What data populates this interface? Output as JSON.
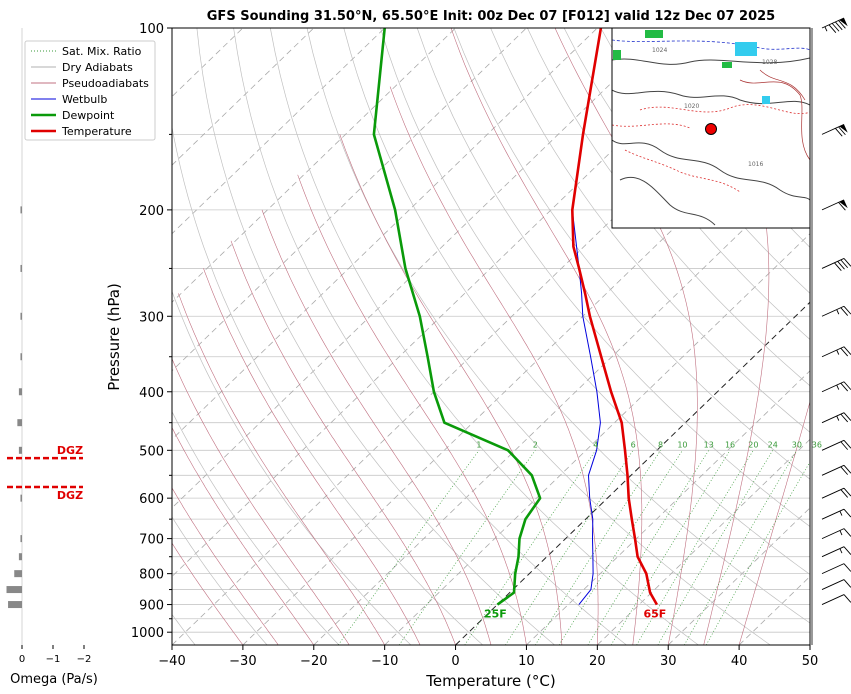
{
  "title": "GFS Sounding 31.50°N, 65.50°E Init: 00z Dec 07 [F012] valid 12z Dec 07 2025",
  "colors": {
    "temperature": "#e00000",
    "dewpoint": "#0a9a0a",
    "wetbulb": "#0000dd",
    "dry_adiabat": "#c0c0c0",
    "pseudoadiabat": "#c07080",
    "mixing_ratio": "#3a9a3a"
  },
  "chart_data": {
    "type": "line",
    "subtype": "skew-T log-P",
    "title": "GFS Sounding 31.50°N, 65.50°E Init: 00z Dec 07 [F012] valid 12z Dec 07 2025",
    "xlabel": "Temperature (°C)",
    "ylabel": "Pressure (hPa)",
    "xlim": [
      -40,
      50
    ],
    "ylim": [
      1050,
      100
    ],
    "x_ticks": [
      "−40",
      "−30",
      "−20",
      "−10",
      "0",
      "10",
      "20",
      "30",
      "40",
      "50"
    ],
    "y_ticks": [
      "100",
      "200",
      "300",
      "400",
      "500",
      "600",
      "700",
      "800",
      "900",
      "1000"
    ],
    "legend": {
      "position": "top-left",
      "entries": [
        "Sat. Mix. Ratio",
        "Dry Adiabats",
        "Pseudoadiabats",
        "Wetbulb",
        "Dewpoint",
        "Temperature"
      ]
    },
    "series": [
      {
        "name": "Temperature",
        "points": [
          [
            900,
            22.5
          ],
          [
            860,
            19.8
          ],
          [
            800,
            16.5
          ],
          [
            750,
            12.8
          ],
          [
            700,
            9.8
          ],
          [
            650,
            6.5
          ],
          [
            600,
            3.0
          ],
          [
            550,
            -0.5
          ],
          [
            500,
            -4.5
          ],
          [
            450,
            -9.0
          ],
          [
            400,
            -15.0
          ],
          [
            350,
            -21.5
          ],
          [
            300,
            -29.0
          ],
          [
            275,
            -33.0
          ],
          [
            250,
            -37.5
          ],
          [
            230,
            -41.5
          ],
          [
            200,
            -47.0
          ],
          [
            150,
            -56.5
          ],
          [
            100,
            -69.5
          ]
        ]
      },
      {
        "name": "Dewpoint",
        "points": [
          [
            900,
            0.0
          ],
          [
            860,
            0.6
          ],
          [
            800,
            -2.0
          ],
          [
            750,
            -4.0
          ],
          [
            700,
            -6.5
          ],
          [
            650,
            -8.5
          ],
          [
            600,
            -9.5
          ],
          [
            550,
            -14.0
          ],
          [
            500,
            -21.0
          ],
          [
            450,
            -34.0
          ],
          [
            400,
            -40.0
          ],
          [
            350,
            -46.0
          ],
          [
            300,
            -53.0
          ],
          [
            250,
            -62.0
          ],
          [
            200,
            -72.0
          ],
          [
            150,
            -86.0
          ],
          [
            100,
            -100.0
          ]
        ]
      },
      {
        "name": "Wetbulb",
        "points": [
          [
            900,
            11.5
          ],
          [
            850,
            11.0
          ],
          [
            800,
            9.0
          ],
          [
            750,
            6.5
          ],
          [
            700,
            3.8
          ],
          [
            650,
            1.0
          ],
          [
            600,
            -2.5
          ],
          [
            550,
            -6.0
          ],
          [
            500,
            -8.5
          ],
          [
            450,
            -12.0
          ],
          [
            400,
            -17.0
          ],
          [
            350,
            -23.0
          ],
          [
            300,
            -30.0
          ],
          [
            275,
            -33.5
          ],
          [
            250,
            -37.5
          ],
          [
            200,
            -47.0
          ],
          [
            150,
            -56.5
          ],
          [
            100,
            -69.5
          ]
        ]
      }
    ],
    "annotations": {
      "surface_temperature_label": "65F",
      "surface_dewpoint_label": "25F",
      "mixing_ratio_labels": [
        "1",
        "2",
        "4",
        "6",
        "8",
        "10",
        "13",
        "16",
        "20",
        "24",
        "30",
        "36"
      ],
      "mixing_ratio_values_gkg": [
        1,
        2,
        4,
        6,
        8,
        10,
        13,
        16,
        20,
        24,
        30,
        36
      ]
    },
    "wind_barbs": [
      {
        "pressure": 100,
        "speed_kt": 95
      },
      {
        "pressure": 150,
        "speed_kt": 70
      },
      {
        "pressure": 200,
        "speed_kt": 60
      },
      {
        "pressure": 250,
        "speed_kt": 40
      },
      {
        "pressure": 300,
        "speed_kt": 25
      },
      {
        "pressure": 350,
        "speed_kt": 25
      },
      {
        "pressure": 400,
        "speed_kt": 25
      },
      {
        "pressure": 450,
        "speed_kt": 25
      },
      {
        "pressure": 500,
        "speed_kt": 20
      },
      {
        "pressure": 550,
        "speed_kt": 20
      },
      {
        "pressure": 600,
        "speed_kt": 20
      },
      {
        "pressure": 650,
        "speed_kt": 15
      },
      {
        "pressure": 700,
        "speed_kt": 15
      },
      {
        "pressure": 750,
        "speed_kt": 15
      },
      {
        "pressure": 800,
        "speed_kt": 10
      },
      {
        "pressure": 850,
        "speed_kt": 10
      },
      {
        "pressure": 900,
        "speed_kt": 10
      }
    ],
    "omega_panel": {
      "xlabel": "Omega (Pa/s)",
      "x_ticks": [
        "0",
        "−1",
        "−2"
      ],
      "dgz_label": "DGZ",
      "dgz_top_hpa": 515,
      "dgz_bottom_hpa": 575,
      "values": [
        {
          "pressure": 200,
          "omega": 0.05
        },
        {
          "pressure": 250,
          "omega": 0.05
        },
        {
          "pressure": 300,
          "omega": 0.05
        },
        {
          "pressure": 350,
          "omega": 0.05
        },
        {
          "pressure": 400,
          "omega": 0.1
        },
        {
          "pressure": 450,
          "omega": 0.15
        },
        {
          "pressure": 500,
          "omega": 0.1
        },
        {
          "pressure": 600,
          "omega": 0.05
        },
        {
          "pressure": 700,
          "omega": 0.05
        },
        {
          "pressure": 750,
          "omega": 0.1
        },
        {
          "pressure": 800,
          "omega": 0.25
        },
        {
          "pressure": 850,
          "omega": 0.5
        },
        {
          "pressure": 900,
          "omega": 0.45
        }
      ]
    },
    "inset_map": {
      "description": "surface pressure map with sounding location marker",
      "isobar_labels": [
        "1020",
        "1024",
        "1016",
        "1028"
      ]
    }
  }
}
